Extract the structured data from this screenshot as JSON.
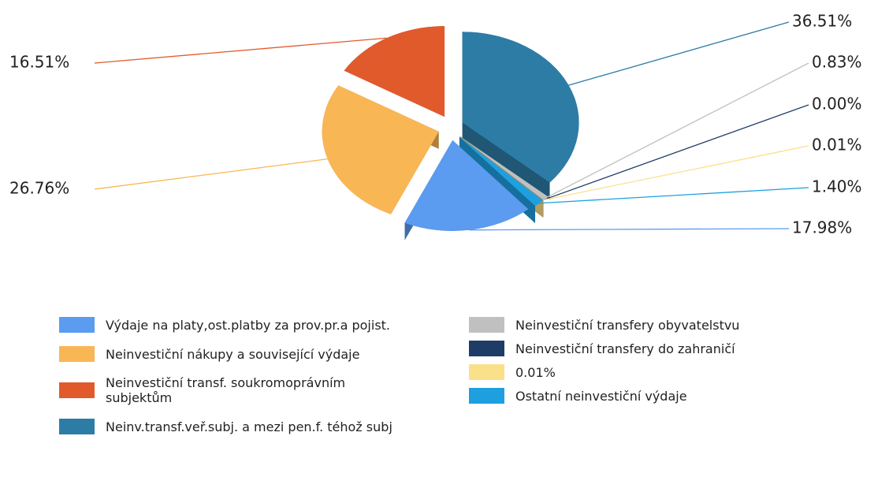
{
  "chart_data": {
    "type": "pie",
    "series": [
      {
        "name": "Výdaje na platy,ost.platby za prov.pr.a pojist.",
        "color": "#5b9bf0",
        "values": [
          17.98
        ],
        "value_labels": [
          "17.98%"
        ]
      },
      {
        "name": "Neinvestiční nákupy a související výdaje",
        "color": "#f9b654",
        "values": [
          26.76
        ],
        "value_labels": [
          "26.76%"
        ]
      },
      {
        "name": "Neinvestiční transf. soukromoprávním subjektům",
        "color": "#e15a2c",
        "values": [
          16.51
        ],
        "value_labels": [
          "16.51%"
        ]
      },
      {
        "name": "Neinv.transf.veř.subj. a mezi pen.f. téhož subj",
        "color": "#2d7ca6",
        "values": [
          36.51
        ],
        "value_labels": [
          "36.51%"
        ]
      },
      {
        "name": "Neinvestiční transfery obyvatelstvu",
        "color": "#c0c0c0",
        "values": [
          0.83
        ],
        "value_labels": [
          "0.83%"
        ]
      },
      {
        "name": "Neinvestiční transfery do zahraničí",
        "color": "#1f3c66",
        "values": [
          0.0
        ],
        "value_labels": [
          "0.00%"
        ]
      },
      {
        "name": "0.01%",
        "color": "#fbe08a",
        "values": [
          0.01
        ],
        "value_labels": [
          "0.01%"
        ]
      },
      {
        "name": "Ostatní neinvestiční výdaje",
        "color": "#1ea0e0",
        "values": [
          1.4
        ],
        "value_labels": [
          "1.40%"
        ]
      }
    ]
  }
}
